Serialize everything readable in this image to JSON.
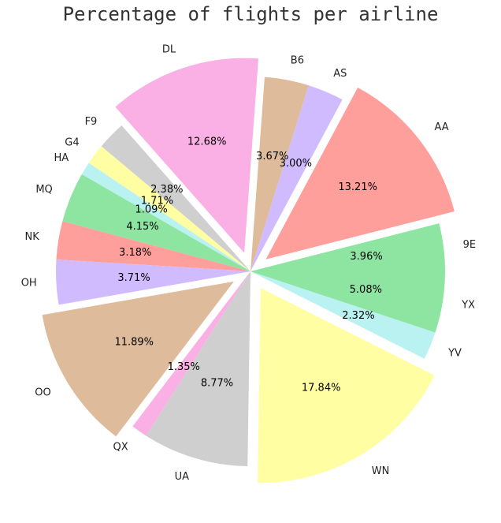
{
  "chart_data": {
    "type": "pie",
    "title": "Percentage of flights per airline",
    "start_angle_deg": 0,
    "direction": "counterclockwise",
    "slices": [
      {
        "label": "9E",
        "value": 3.96,
        "pct_label": "3.96%",
        "color": "#8de5a1",
        "exploded": false
      },
      {
        "label": "AA",
        "value": 13.21,
        "pct_label": "13.21%",
        "color": "#ff9f9b",
        "exploded": true
      },
      {
        "label": "AS",
        "value": 3.0,
        "pct_label": "3.00%",
        "color": "#d0bbff",
        "exploded": false
      },
      {
        "label": "B6",
        "value": 3.67,
        "pct_label": "3.67%",
        "color": "#debb9b",
        "exploded": false
      },
      {
        "label": "DL",
        "value": 12.68,
        "pct_label": "12.68%",
        "color": "#fab0e4",
        "exploded": true
      },
      {
        "label": "F9",
        "value": 2.38,
        "pct_label": "2.38%",
        "color": "#cfcfcf",
        "exploded": false
      },
      {
        "label": "G4",
        "value": 1.71,
        "pct_label": "1.71%",
        "color": "#fffea3",
        "exploded": false
      },
      {
        "label": "HA",
        "value": 1.09,
        "pct_label": "1.09%",
        "color": "#b9f2f0",
        "exploded": false
      },
      {
        "label": "MQ",
        "value": 4.15,
        "pct_label": "4.15%",
        "color": "#8de5a1",
        "exploded": false
      },
      {
        "label": "NK",
        "value": 3.18,
        "pct_label": "3.18%",
        "color": "#ff9f9b",
        "exploded": false
      },
      {
        "label": "OH",
        "value": 3.71,
        "pct_label": "3.71%",
        "color": "#d0bbff",
        "exploded": false
      },
      {
        "label": "OO",
        "value": 11.89,
        "pct_label": "11.89%",
        "color": "#debb9b",
        "exploded": true
      },
      {
        "label": "QX",
        "value": 1.35,
        "pct_label": "1.35%",
        "color": "#fab0e4",
        "exploded": false
      },
      {
        "label": "UA",
        "value": 8.77,
        "pct_label": "8.77%",
        "color": "#cfcfcf",
        "exploded": false
      },
      {
        "label": "WN",
        "value": 17.84,
        "pct_label": "17.84%",
        "color": "#fffea3",
        "exploded": true
      },
      {
        "label": "YV",
        "value": 2.32,
        "pct_label": "2.32%",
        "color": "#b9f2f0",
        "exploded": false
      },
      {
        "label": "YX",
        "value": 5.08,
        "pct_label": "5.08%",
        "color": "#8de5a1",
        "exploded": false
      }
    ]
  }
}
